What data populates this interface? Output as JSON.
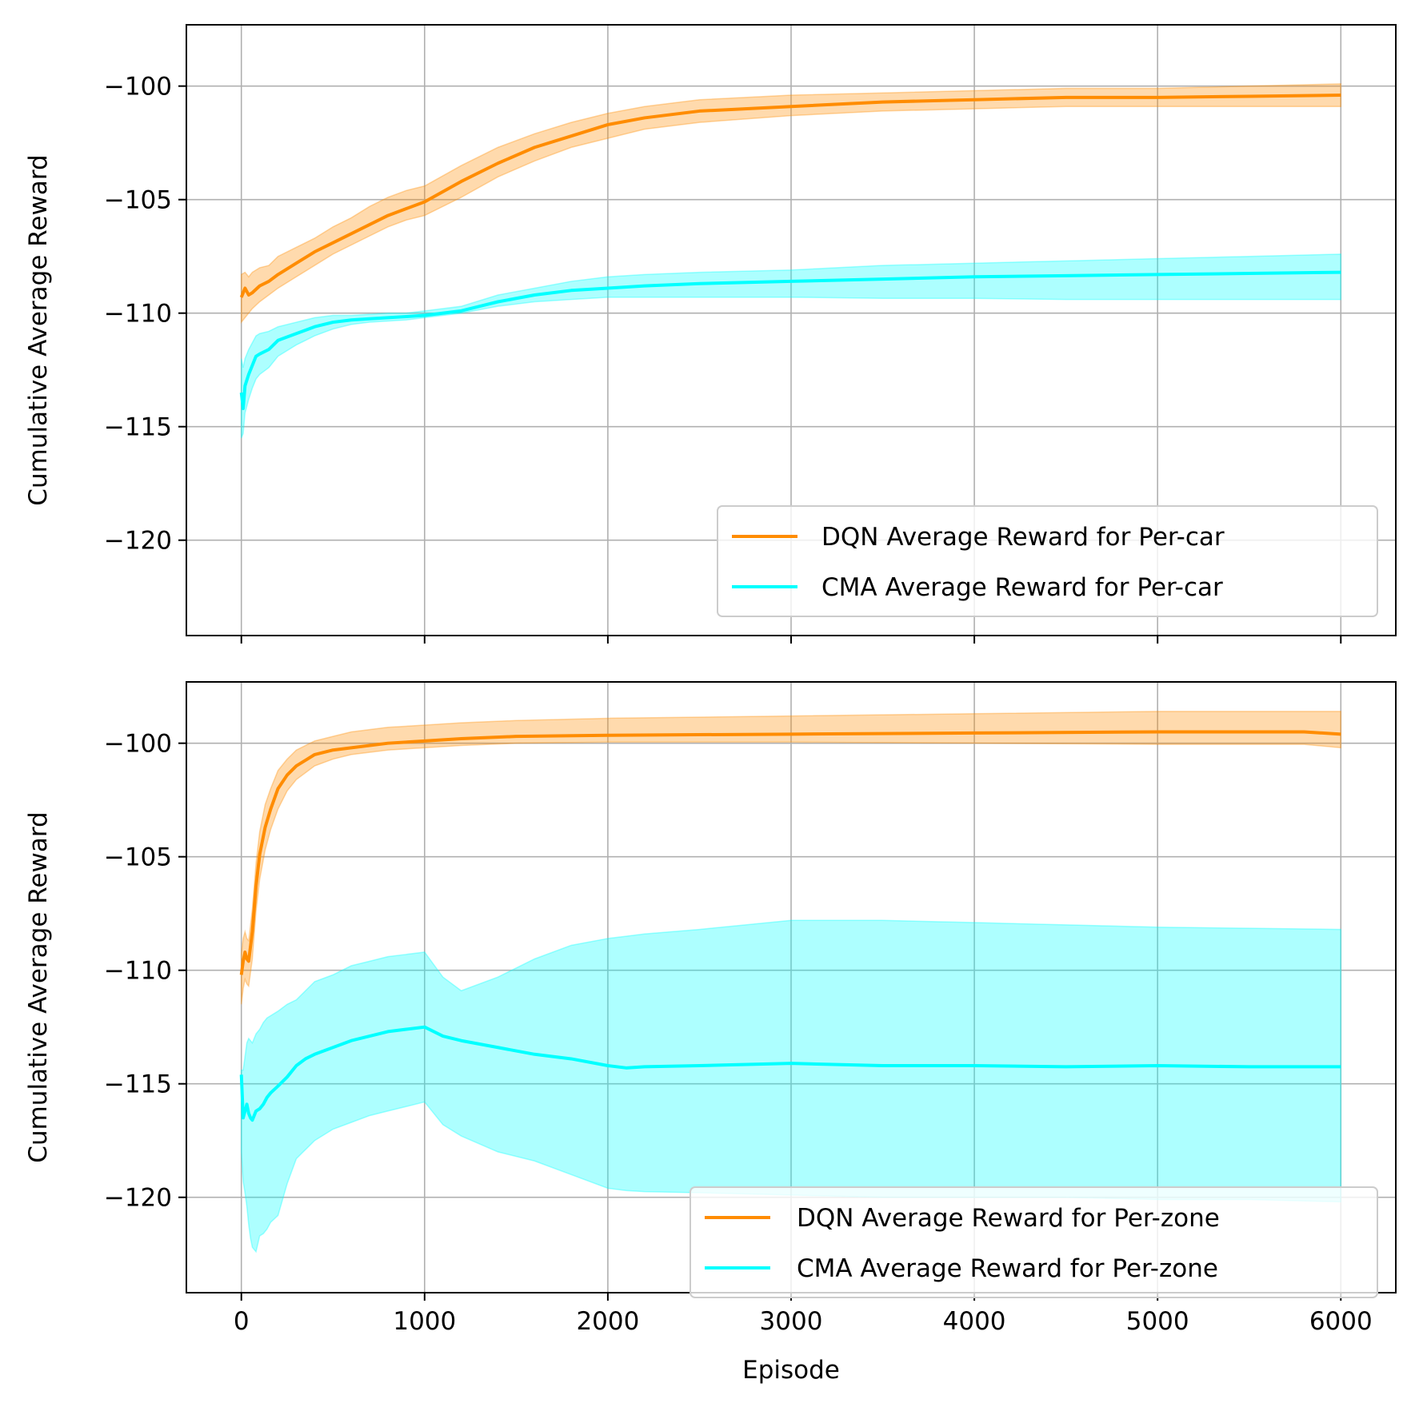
{
  "chart_data": [
    {
      "type": "line",
      "xlabel": "",
      "ylabel": "Cumulative Average Reward",
      "xlim": [
        -300,
        6300
      ],
      "ylim": [
        -124.2,
        -97.3
      ],
      "xticks": [
        0,
        1000,
        2000,
        3000,
        4000,
        5000,
        6000
      ],
      "xtick_labels": [],
      "yticks": [
        -120,
        -115,
        -110,
        -105,
        -100
      ],
      "ytick_labels": [
        "−120",
        "−115",
        "−110",
        "−105",
        "−100"
      ],
      "grid": true,
      "legend_position": "lower-right",
      "series": [
        {
          "name": "DQN Average Reward for Per-car",
          "color": "#ff8c00",
          "x": [
            0,
            20,
            40,
            60,
            100,
            150,
            200,
            300,
            400,
            500,
            600,
            700,
            800,
            900,
            1000,
            1200,
            1400,
            1600,
            1800,
            2000,
            2200,
            2500,
            3000,
            3500,
            4000,
            4500,
            5000,
            5500,
            6000
          ],
          "y": [
            -109.3,
            -108.9,
            -109.2,
            -109.1,
            -108.8,
            -108.6,
            -108.3,
            -107.8,
            -107.3,
            -106.9,
            -106.5,
            -106.1,
            -105.7,
            -105.4,
            -105.1,
            -104.2,
            -103.4,
            -102.7,
            -102.2,
            -101.7,
            -101.4,
            -101.1,
            -100.9,
            -100.7,
            -100.6,
            -100.5,
            -100.5,
            -100.45,
            -100.4
          ],
          "lower": [
            -110.4,
            -110.2,
            -110.0,
            -109.8,
            -109.5,
            -109.2,
            -108.9,
            -108.4,
            -107.9,
            -107.4,
            -107.0,
            -106.6,
            -106.2,
            -105.9,
            -105.7,
            -104.9,
            -104.0,
            -103.3,
            -102.7,
            -102.3,
            -101.9,
            -101.6,
            -101.3,
            -101.1,
            -101.0,
            -100.9,
            -100.9,
            -100.9,
            -100.9
          ],
          "upper": [
            -108.3,
            -108.2,
            -108.4,
            -108.2,
            -108.0,
            -107.9,
            -107.5,
            -107.1,
            -106.7,
            -106.2,
            -105.8,
            -105.3,
            -104.9,
            -104.6,
            -104.4,
            -103.5,
            -102.7,
            -102.1,
            -101.6,
            -101.2,
            -100.9,
            -100.6,
            -100.4,
            -100.3,
            -100.2,
            -100.1,
            -100.1,
            -100.0,
            -99.9
          ]
        },
        {
          "name": "CMA Average Reward for Per-car",
          "color": "#00ffff",
          "x": [
            0,
            10,
            20,
            40,
            60,
            80,
            100,
            150,
            200,
            300,
            400,
            500,
            600,
            700,
            800,
            900,
            1000,
            1200,
            1400,
            1600,
            1800,
            2000,
            2200,
            2500,
            3000,
            3500,
            4000,
            4500,
            5000,
            5500,
            6000
          ],
          "y": [
            -113.5,
            -114.2,
            -113.2,
            -112.7,
            -112.3,
            -111.9,
            -111.8,
            -111.6,
            -111.2,
            -110.9,
            -110.6,
            -110.4,
            -110.3,
            -110.25,
            -110.2,
            -110.15,
            -110.1,
            -109.9,
            -109.5,
            -109.2,
            -109.0,
            -108.9,
            -108.8,
            -108.7,
            -108.6,
            -108.5,
            -108.4,
            -108.35,
            -108.3,
            -108.25,
            -108.2
          ],
          "lower": [
            -115.5,
            -115.3,
            -114.4,
            -113.8,
            -113.3,
            -112.9,
            -112.7,
            -112.4,
            -111.9,
            -111.4,
            -111.0,
            -110.7,
            -110.5,
            -110.4,
            -110.35,
            -110.3,
            -110.2,
            -110.0,
            -109.7,
            -109.5,
            -109.4,
            -109.3,
            -109.3,
            -109.3,
            -109.3,
            -109.35,
            -109.35,
            -109.4,
            -109.4,
            -109.4,
            -109.4
          ],
          "upper": [
            -112.0,
            -112.4,
            -112.0,
            -111.6,
            -111.3,
            -111.0,
            -110.9,
            -110.8,
            -110.6,
            -110.4,
            -110.2,
            -110.1,
            -110.1,
            -110.05,
            -110.0,
            -110.0,
            -109.9,
            -109.7,
            -109.2,
            -108.9,
            -108.6,
            -108.4,
            -108.3,
            -108.2,
            -108.1,
            -107.9,
            -107.8,
            -107.7,
            -107.6,
            -107.5,
            -107.4
          ]
        }
      ],
      "legend": [
        "DQN Average Reward for Per-car",
        "CMA Average Reward for Per-car"
      ]
    },
    {
      "type": "line",
      "xlabel": "Episode",
      "ylabel": "Cumulative Average Reward",
      "xlim": [
        -300,
        6300
      ],
      "ylim": [
        -124.2,
        -97.3
      ],
      "xticks": [
        0,
        1000,
        2000,
        3000,
        4000,
        5000,
        6000
      ],
      "xtick_labels": [
        "0",
        "1000",
        "2000",
        "3000",
        "4000",
        "5000",
        "6000"
      ],
      "yticks": [
        -120,
        -115,
        -110,
        -105,
        -100
      ],
      "ytick_labels": [
        "−120",
        "−115",
        "−110",
        "−105",
        "−100"
      ],
      "grid": true,
      "legend_position": "lower-right",
      "series": [
        {
          "name": "DQN Average Reward for Per-zone",
          "color": "#ff8c00",
          "x": [
            0,
            10,
            20,
            30,
            40,
            60,
            80,
            100,
            130,
            160,
            200,
            250,
            300,
            400,
            500,
            600,
            800,
            1000,
            1200,
            1500,
            2000,
            3000,
            4000,
            5000,
            5800,
            6000
          ],
          "y": [
            -110.2,
            -109.6,
            -109.2,
            -109.5,
            -109.6,
            -108.3,
            -106.3,
            -104.9,
            -103.7,
            -102.9,
            -102.0,
            -101.4,
            -101.0,
            -100.5,
            -100.3,
            -100.2,
            -100.0,
            -99.9,
            -99.8,
            -99.7,
            -99.65,
            -99.6,
            -99.55,
            -99.5,
            -99.5,
            -99.6
          ],
          "lower": [
            -111.5,
            -110.8,
            -110.4,
            -110.6,
            -110.7,
            -109.5,
            -107.4,
            -106.0,
            -104.7,
            -103.8,
            -102.9,
            -102.1,
            -101.6,
            -101.0,
            -100.7,
            -100.5,
            -100.3,
            -100.2,
            -100.1,
            -100.0,
            -99.95,
            -99.95,
            -100.0,
            -100.05,
            -100.05,
            -100.2
          ],
          "upper": [
            -109.3,
            -108.6,
            -108.3,
            -108.6,
            -108.7,
            -107.3,
            -105.3,
            -103.9,
            -102.7,
            -102.0,
            -101.2,
            -100.7,
            -100.3,
            -99.9,
            -99.7,
            -99.5,
            -99.3,
            -99.2,
            -99.1,
            -99.0,
            -98.9,
            -98.8,
            -98.7,
            -98.6,
            -98.6,
            -98.6
          ]
        },
        {
          "name": "CMA Average Reward for Per-zone",
          "color": "#00ffff",
          "x": [
            0,
            10,
            20,
            30,
            40,
            50,
            60,
            70,
            80,
            100,
            120,
            140,
            160,
            200,
            250,
            300,
            350,
            400,
            500,
            600,
            700,
            800,
            900,
            1000,
            1100,
            1200,
            1400,
            1600,
            1800,
            2000,
            2100,
            2200,
            2500,
            3000,
            3500,
            4000,
            4500,
            5000,
            5500,
            6000
          ],
          "y": [
            -114.6,
            -116.5,
            -116.2,
            -115.9,
            -116.3,
            -116.5,
            -116.6,
            -116.4,
            -116.2,
            -116.1,
            -115.9,
            -115.6,
            -115.4,
            -115.1,
            -114.7,
            -114.2,
            -113.9,
            -113.7,
            -113.4,
            -113.1,
            -112.9,
            -112.7,
            -112.6,
            -112.5,
            -112.9,
            -113.1,
            -113.4,
            -113.7,
            -113.9,
            -114.2,
            -114.3,
            -114.25,
            -114.2,
            -114.1,
            -114.2,
            -114.2,
            -114.25,
            -114.2,
            -114.25,
            -114.25
          ],
          "lower": [
            -118.0,
            -119.3,
            -119.8,
            -120.4,
            -121.2,
            -121.8,
            -122.2,
            -122.3,
            -122.4,
            -121.7,
            -121.6,
            -121.4,
            -121.1,
            -120.8,
            -119.4,
            -118.3,
            -117.9,
            -117.5,
            -117.0,
            -116.7,
            -116.4,
            -116.2,
            -116.0,
            -115.8,
            -116.8,
            -117.3,
            -118.0,
            -118.4,
            -119.0,
            -119.6,
            -119.7,
            -119.75,
            -119.8,
            -119.9,
            -120.0,
            -120.0,
            -120.0,
            -120.1,
            -120.1,
            -120.2
          ],
          "upper": [
            -114.4,
            -114.4,
            -113.8,
            -113.2,
            -113.0,
            -113.1,
            -113.2,
            -113.0,
            -112.8,
            -112.6,
            -112.3,
            -112.1,
            -112.0,
            -111.8,
            -111.5,
            -111.3,
            -110.9,
            -110.5,
            -110.2,
            -109.8,
            -109.6,
            -109.4,
            -109.3,
            -109.2,
            -110.3,
            -110.9,
            -110.3,
            -109.5,
            -108.9,
            -108.6,
            -108.5,
            -108.4,
            -108.2,
            -107.8,
            -107.8,
            -107.9,
            -108.0,
            -108.1,
            -108.15,
            -108.2
          ]
        }
      ],
      "legend": [
        "DQN Average Reward for Per-zone",
        "CMA Average Reward for Per-zone"
      ]
    }
  ]
}
